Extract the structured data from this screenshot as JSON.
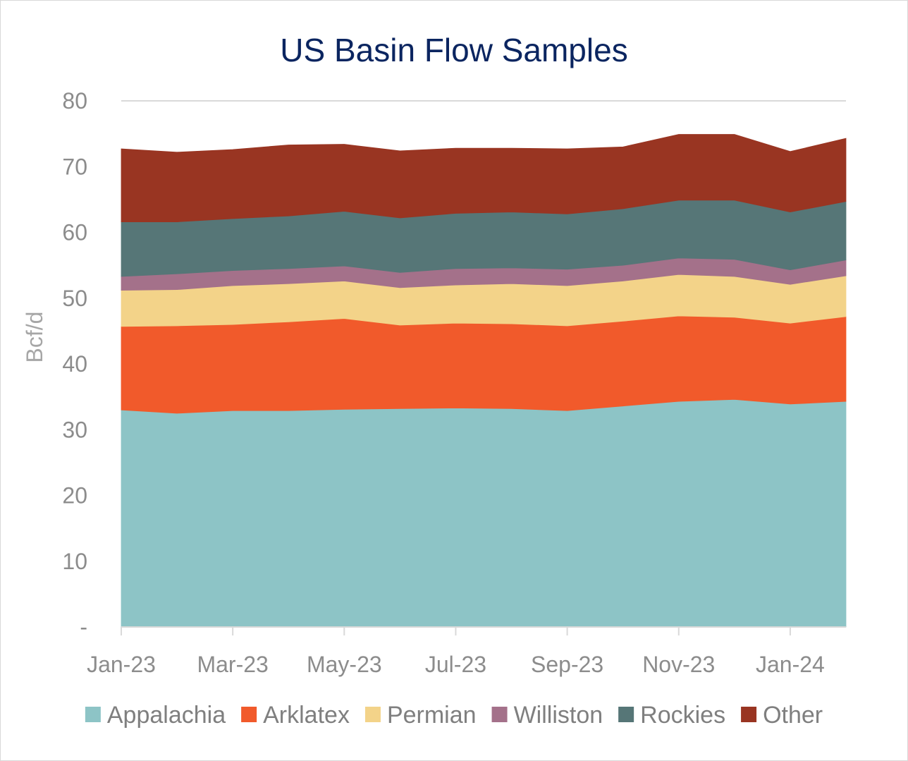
{
  "chart_data": {
    "type": "area",
    "stacked": true,
    "title": "US Basin Flow Samples",
    "xlabel": "",
    "ylabel": "Bcf/d",
    "ylim": [
      0,
      80
    ],
    "yticks": [
      0,
      10,
      20,
      30,
      40,
      50,
      60,
      70,
      80
    ],
    "ytick_labels": [
      "-",
      "10",
      "20",
      "30",
      "40",
      "50",
      "60",
      "70",
      "80"
    ],
    "x": [
      "Jan-23",
      "Feb-23",
      "Mar-23",
      "Apr-23",
      "May-23",
      "Jun-23",
      "Jul-23",
      "Aug-23",
      "Sep-23",
      "Oct-23",
      "Nov-23",
      "Dec-23",
      "Jan-24",
      "Feb-24"
    ],
    "xtick_labels": [
      "Jan-23",
      "Mar-23",
      "May-23",
      "Jul-23",
      "Sep-23",
      "Nov-23",
      "Jan-24"
    ],
    "grid": "horizontal",
    "legend_position": "bottom",
    "series": [
      {
        "name": "Appalachia",
        "color": "#8dc4c6",
        "values": [
          33.0,
          32.5,
          32.9,
          32.9,
          33.1,
          33.2,
          33.3,
          33.2,
          32.9,
          33.6,
          34.3,
          34.6,
          33.9,
          34.3
        ]
      },
      {
        "name": "Arklatex",
        "color": "#f15a2b",
        "values": [
          12.7,
          13.3,
          13.1,
          13.5,
          13.8,
          12.7,
          12.9,
          12.9,
          12.9,
          12.9,
          13.0,
          12.5,
          12.3,
          12.9
        ]
      },
      {
        "name": "Permian",
        "color": "#f3d389",
        "values": [
          5.5,
          5.5,
          5.9,
          5.8,
          5.7,
          5.7,
          5.8,
          6.1,
          6.1,
          6.1,
          6.3,
          6.2,
          5.9,
          6.2
        ]
      },
      {
        "name": "Williston",
        "color": "#a4718a",
        "values": [
          2.1,
          2.4,
          2.3,
          2.3,
          2.3,
          2.3,
          2.5,
          2.4,
          2.5,
          2.4,
          2.5,
          2.6,
          2.2,
          2.4
        ]
      },
      {
        "name": "Rockies",
        "color": "#567677",
        "values": [
          8.3,
          7.9,
          7.9,
          8.0,
          8.3,
          8.3,
          8.4,
          8.5,
          8.4,
          8.6,
          8.8,
          9.0,
          8.8,
          8.9
        ]
      },
      {
        "name": "Other",
        "color": "#993522",
        "values": [
          11.1,
          10.6,
          10.5,
          10.8,
          10.2,
          10.2,
          9.9,
          9.7,
          9.9,
          9.4,
          10.0,
          10.0,
          9.2,
          9.6
        ]
      }
    ]
  }
}
